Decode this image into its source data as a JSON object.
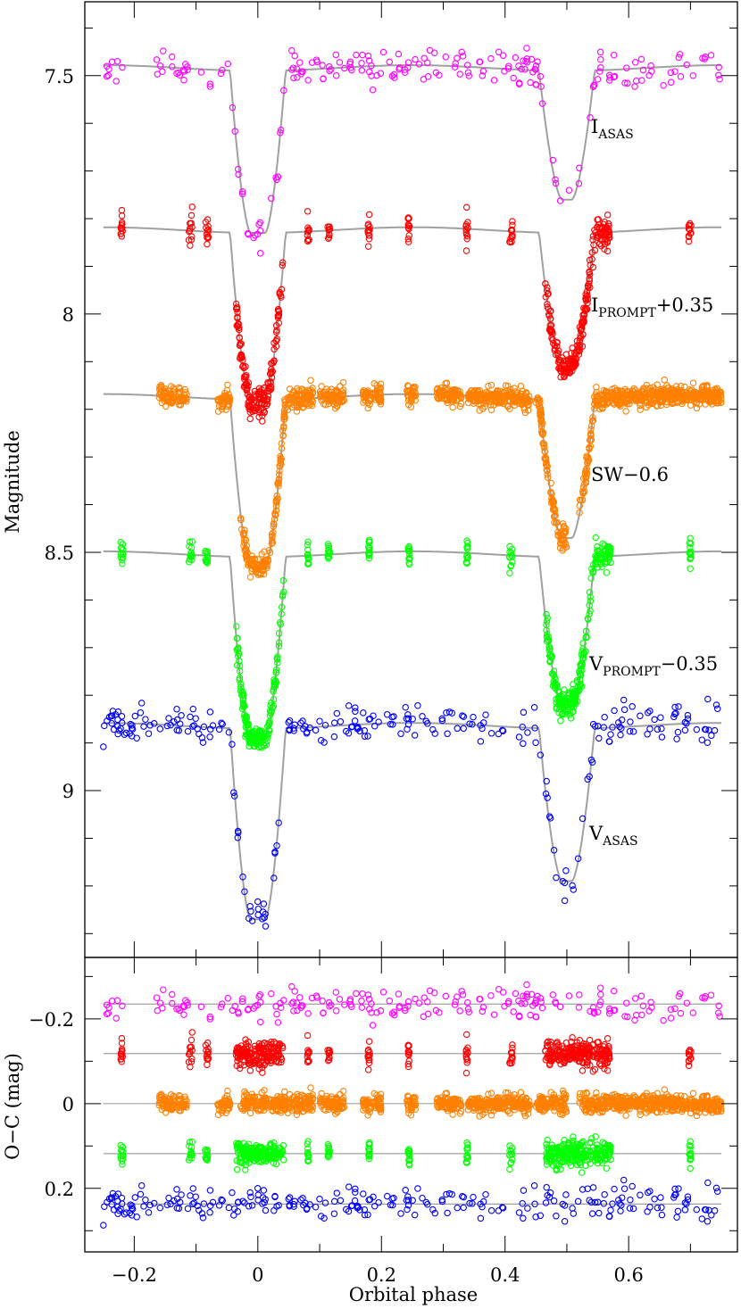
{
  "chart_data": [
    {
      "type": "scatter",
      "panel": "light-curves",
      "xlabel": "Orbital phase",
      "ylabel": "Magnitude",
      "xlim": [
        -0.28,
        0.776
      ],
      "ylim": [
        9.35,
        7.345
      ],
      "y_inverted": true,
      "xticks": [
        "-0.2",
        "0",
        "0.2",
        "0.4",
        "0.6"
      ],
      "xtick_values": [
        -0.2,
        0,
        0.2,
        0.4,
        0.6
      ],
      "yticks": [
        "7.5",
        "8",
        "8.5",
        "9"
      ],
      "ytick_values": [
        7.5,
        8,
        8.5,
        9
      ],
      "grid": false,
      "legend": "none (labels beside curves)",
      "model_color": "#a0a0a0",
      "series": [
        {
          "name": "I",
          "sub": "ASAS",
          "suffix": "",
          "color": "#ff00ff",
          "baseline": 7.49,
          "primary_min": 7.83,
          "secondary_min": 7.76,
          "scatter": 0.02,
          "coverage": "uniform",
          "n": 210
        },
        {
          "name": "I",
          "sub": "PROMPT",
          "suffix": "+0.35",
          "color": "#ff0000",
          "baseline": 7.83,
          "primary_min": 8.18,
          "secondary_min": 8.11,
          "scatter": 0.015,
          "coverage": "clusters",
          "clusters": [
            [
              -0.222,
              -0.218
            ],
            [
              -0.112,
              -0.106
            ],
            [
              -0.085,
              -0.08
            ],
            [
              -0.035,
              0.042
            ],
            [
              0.08,
              0.083
            ],
            [
              0.113,
              0.117
            ],
            [
              0.178,
              0.181
            ],
            [
              0.243,
              0.246
            ],
            [
              0.337,
              0.34
            ],
            [
              0.407,
              0.412
            ],
            [
              0.465,
              0.572
            ],
            [
              0.697,
              0.701
            ]
          ]
        },
        {
          "name": "SW",
          "sub": "",
          "suffix": "−0.6",
          "color": "#ff8000",
          "baseline": 8.18,
          "primary_min": 8.53,
          "secondary_min": 8.47,
          "scatter": 0.01,
          "coverage": "clusters",
          "clusters": [
            [
              -0.16,
              -0.135
            ],
            [
              -0.128,
              -0.115
            ],
            [
              -0.065,
              -0.045
            ],
            [
              -0.028,
              0.045
            ],
            [
              0.047,
              0.09
            ],
            [
              0.1,
              0.14
            ],
            [
              0.17,
              0.2
            ],
            [
              0.24,
              0.255
            ],
            [
              0.29,
              0.33
            ],
            [
              0.34,
              0.44
            ],
            [
              0.45,
              0.5
            ],
            [
              0.52,
              0.75
            ]
          ]
        },
        {
          "name": "V",
          "sub": "PROMPT",
          "suffix": "−0.35",
          "color": "#00ff00",
          "baseline": 8.51,
          "primary_min": 8.89,
          "secondary_min": 8.82,
          "scatter": 0.015,
          "coverage": "clusters",
          "clusters": [
            [
              -0.222,
              -0.218
            ],
            [
              -0.112,
              -0.106
            ],
            [
              -0.085,
              -0.08
            ],
            [
              -0.035,
              0.042
            ],
            [
              0.08,
              0.083
            ],
            [
              0.113,
              0.117
            ],
            [
              0.178,
              0.181
            ],
            [
              0.243,
              0.246
            ],
            [
              0.337,
              0.34
            ],
            [
              0.407,
              0.412
            ],
            [
              0.465,
              0.572
            ],
            [
              0.697,
              0.701
            ]
          ]
        },
        {
          "name": "V",
          "sub": "ASAS",
          "suffix": "",
          "color": "#0000ff",
          "baseline": 8.87,
          "primary_min": 9.27,
          "secondary_min": 9.19,
          "scatter": 0.02,
          "coverage": "uniform",
          "n": 260
        }
      ]
    },
    {
      "type": "scatter",
      "panel": "residuals",
      "xlabel": "Orbital phase",
      "ylabel": "O−C (mag)",
      "xlim": [
        -0.28,
        0.776
      ],
      "ylim": [
        0.35,
        -0.345
      ],
      "y_inverted": true,
      "yticks": [
        "−0.2",
        "0",
        "0.2"
      ],
      "ytick_values": [
        -0.2,
        0,
        0.2
      ],
      "residual_offsets": [
        -0.235,
        -0.118,
        0,
        0.118,
        0.237
      ]
    }
  ]
}
